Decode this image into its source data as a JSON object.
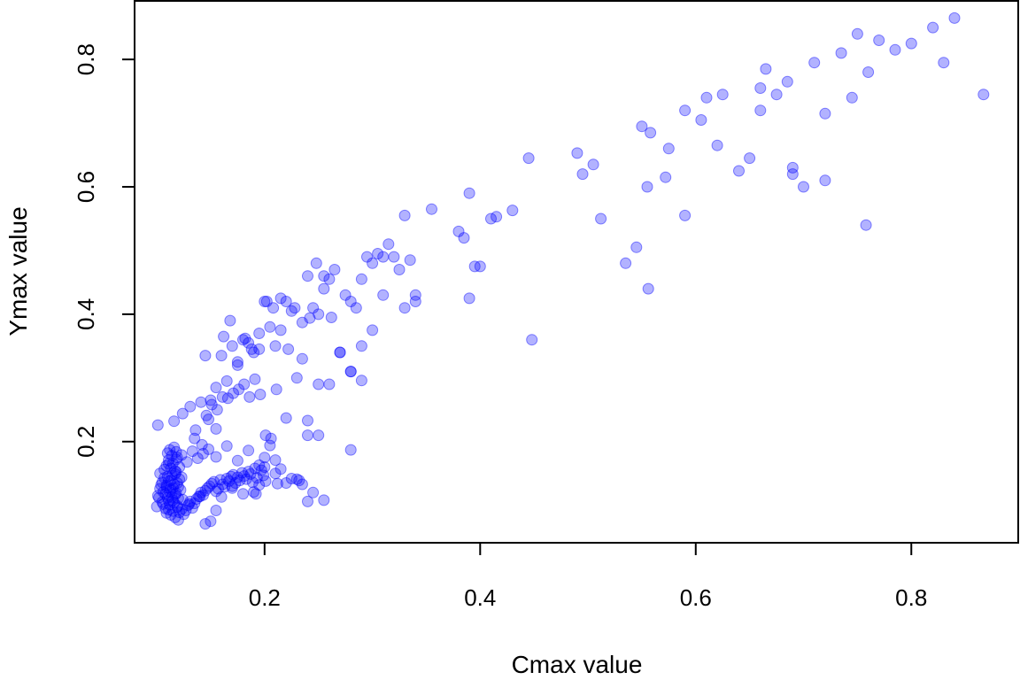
{
  "chart_data": {
    "type": "scatter",
    "xlabel": "Cmax value",
    "ylabel": "Ymax value",
    "xlim": [
      0.0794,
      0.9
    ],
    "ylim": [
      0.0412,
      0.8933
    ],
    "x_ticks": [
      0.2,
      0.4,
      0.6,
      0.8
    ],
    "y_ticks": [
      0.2,
      0.4,
      0.6,
      0.8
    ],
    "x_tick_labels": [
      "0.2",
      "0.4",
      "0.6",
      "0.8"
    ],
    "y_tick_labels": [
      "0.2",
      "0.4",
      "0.6",
      "0.8"
    ],
    "grid": false,
    "legend": "none",
    "point_color": "#0000ff",
    "point_opacity": 0.3,
    "x": [
      0.1,
      0.101,
      0.104,
      0.105,
      0.106,
      0.107,
      0.108,
      0.109,
      0.11,
      0.111,
      0.112,
      0.113,
      0.114,
      0.115,
      0.116,
      0.117,
      0.118,
      0.119,
      0.12,
      0.121,
      0.102,
      0.103,
      0.105,
      0.106,
      0.108,
      0.109,
      0.11,
      0.111,
      0.112,
      0.113,
      0.114,
      0.115,
      0.116,
      0.117,
      0.118,
      0.119,
      0.12,
      0.122,
      0.123,
      0.124,
      0.107,
      0.109,
      0.111,
      0.113,
      0.115,
      0.117,
      0.119,
      0.121,
      0.11,
      0.112,
      0.114,
      0.116,
      0.118,
      0.109,
      0.111,
      0.113,
      0.115,
      0.117,
      0.119,
      0.121,
      0.123,
      0.125,
      0.127,
      0.129,
      0.131,
      0.133,
      0.135,
      0.137,
      0.139,
      0.141,
      0.143,
      0.145,
      0.147,
      0.149,
      0.151,
      0.153,
      0.155,
      0.157,
      0.159,
      0.161,
      0.163,
      0.165,
      0.167,
      0.169,
      0.171,
      0.173,
      0.175,
      0.177,
      0.179,
      0.181,
      0.183,
      0.185,
      0.187,
      0.189,
      0.191,
      0.193,
      0.195,
      0.197,
      0.199,
      0.201,
      0.103,
      0.111,
      0.118,
      0.123,
      0.128,
      0.133,
      0.138,
      0.143,
      0.148,
      0.155,
      0.165,
      0.175,
      0.185,
      0.195,
      0.205,
      0.215,
      0.225,
      0.235,
      0.245,
      0.255,
      0.101,
      0.116,
      0.124,
      0.131,
      0.136,
      0.141,
      0.146,
      0.151,
      0.156,
      0.161,
      0.166,
      0.171,
      0.176,
      0.181,
      0.186,
      0.191,
      0.196,
      0.201,
      0.206,
      0.211,
      0.12,
      0.13,
      0.14,
      0.15,
      0.16,
      0.17,
      0.18,
      0.19,
      0.2,
      0.21,
      0.22,
      0.23,
      0.24,
      0.25,
      0.26,
      0.27,
      0.28,
      0.29,
      0.3,
      0.31,
      0.135,
      0.142,
      0.148,
      0.155,
      0.162,
      0.168,
      0.175,
      0.182,
      0.188,
      0.195,
      0.202,
      0.208,
      0.215,
      0.222,
      0.228,
      0.235,
      0.242,
      0.248,
      0.255,
      0.262,
      0.145,
      0.155,
      0.165,
      0.175,
      0.185,
      0.195,
      0.205,
      0.215,
      0.225,
      0.235,
      0.245,
      0.255,
      0.265,
      0.275,
      0.285,
      0.295,
      0.305,
      0.315,
      0.325,
      0.335,
      0.15,
      0.16,
      0.17,
      0.18,
      0.19,
      0.2,
      0.21,
      0.22,
      0.23,
      0.24,
      0.25,
      0.26,
      0.27,
      0.28,
      0.29,
      0.3,
      0.31,
      0.32,
      0.33,
      0.34,
      0.355,
      0.38,
      0.39,
      0.385,
      0.395,
      0.41,
      0.415,
      0.43,
      0.445,
      0.49,
      0.505,
      0.495,
      0.512,
      0.535,
      0.545,
      0.55,
      0.555,
      0.558,
      0.575,
      0.59,
      0.605,
      0.61,
      0.625,
      0.64,
      0.66,
      0.665,
      0.675,
      0.685,
      0.69,
      0.71,
      0.72,
      0.735,
      0.745,
      0.75,
      0.76,
      0.77,
      0.785,
      0.8,
      0.82,
      0.83,
      0.84,
      0.867,
      0.758,
      0.72,
      0.7,
      0.69,
      0.66,
      0.65,
      0.62,
      0.59,
      0.572,
      0.556,
      0.39,
      0.4,
      0.448,
      0.33,
      0.34,
      0.28,
      0.29,
      0.25,
      0.24,
      0.2,
      0.21,
      0.17,
      0.155,
      0.145,
      0.24,
      0.28,
      0.22,
      0.192,
      0.212,
      0.232
    ],
    "y": [
      0.098,
      0.115,
      0.132,
      0.105,
      0.121,
      0.143,
      0.095,
      0.128,
      0.112,
      0.138,
      0.101,
      0.125,
      0.147,
      0.108,
      0.133,
      0.117,
      0.152,
      0.099,
      0.129,
      0.141,
      0.112,
      0.126,
      0.136,
      0.102,
      0.118,
      0.131,
      0.145,
      0.107,
      0.121,
      0.139,
      0.113,
      0.127,
      0.104,
      0.149,
      0.119,
      0.135,
      0.111,
      0.124,
      0.144,
      0.109,
      0.156,
      0.162,
      0.171,
      0.158,
      0.166,
      0.154,
      0.175,
      0.16,
      0.182,
      0.187,
      0.178,
      0.191,
      0.184,
      0.088,
      0.093,
      0.085,
      0.091,
      0.081,
      0.097,
      0.089,
      0.094,
      0.086,
      0.092,
      0.1,
      0.106,
      0.096,
      0.103,
      0.11,
      0.114,
      0.12,
      0.116,
      0.123,
      0.127,
      0.13,
      0.134,
      0.137,
      0.122,
      0.126,
      0.14,
      0.133,
      0.129,
      0.142,
      0.138,
      0.145,
      0.148,
      0.135,
      0.144,
      0.139,
      0.151,
      0.146,
      0.141,
      0.153,
      0.149,
      0.136,
      0.158,
      0.143,
      0.132,
      0.155,
      0.147,
      0.138,
      0.15,
      0.165,
      0.172,
      0.179,
      0.168,
      0.185,
      0.174,
      0.181,
      0.188,
      0.176,
      0.193,
      0.17,
      0.186,
      0.163,
      0.194,
      0.157,
      0.142,
      0.133,
      0.12,
      0.108,
      0.226,
      0.232,
      0.244,
      0.255,
      0.218,
      0.262,
      0.241,
      0.258,
      0.25,
      0.27,
      0.268,
      0.276,
      0.282,
      0.29,
      0.27,
      0.298,
      0.274,
      0.21,
      0.205,
      0.282,
      0.077,
      0.102,
      0.114,
      0.075,
      0.113,
      0.127,
      0.118,
      0.121,
      0.16,
      0.171,
      0.237,
      0.141,
      0.233,
      0.21,
      0.29,
      0.34,
      0.31,
      0.296,
      0.375,
      0.43,
      0.205,
      0.195,
      0.235,
      0.22,
      0.365,
      0.39,
      0.325,
      0.362,
      0.345,
      0.37,
      0.42,
      0.41,
      0.425,
      0.345,
      0.41,
      0.387,
      0.394,
      0.48,
      0.44,
      0.395,
      0.335,
      0.285,
      0.295,
      0.32,
      0.355,
      0.345,
      0.38,
      0.375,
      0.405,
      0.33,
      0.41,
      0.46,
      0.47,
      0.43,
      0.41,
      0.49,
      0.495,
      0.51,
      0.47,
      0.485,
      0.265,
      0.335,
      0.35,
      0.36,
      0.34,
      0.42,
      0.35,
      0.42,
      0.3,
      0.46,
      0.4,
      0.455,
      0.34,
      0.42,
      0.35,
      0.48,
      0.49,
      0.49,
      0.555,
      0.42,
      0.565,
      0.53,
      0.59,
      0.52,
      0.475,
      0.55,
      0.553,
      0.563,
      0.645,
      0.653,
      0.635,
      0.62,
      0.55,
      0.48,
      0.505,
      0.695,
      0.6,
      0.685,
      0.66,
      0.72,
      0.705,
      0.74,
      0.745,
      0.625,
      0.72,
      0.785,
      0.745,
      0.765,
      0.62,
      0.795,
      0.715,
      0.81,
      0.74,
      0.84,
      0.78,
      0.83,
      0.815,
      0.825,
      0.85,
      0.795,
      0.865,
      0.745,
      0.54,
      0.61,
      0.6,
      0.63,
      0.755,
      0.645,
      0.665,
      0.555,
      0.615,
      0.44,
      0.425,
      0.475,
      0.36,
      0.41,
      0.43,
      0.31,
      0.455,
      0.29,
      0.21,
      0.175,
      0.15,
      0.13,
      0.092,
      0.071,
      0.106,
      0.187,
      0.135,
      0.118,
      0.134,
      0.139
    ]
  }
}
